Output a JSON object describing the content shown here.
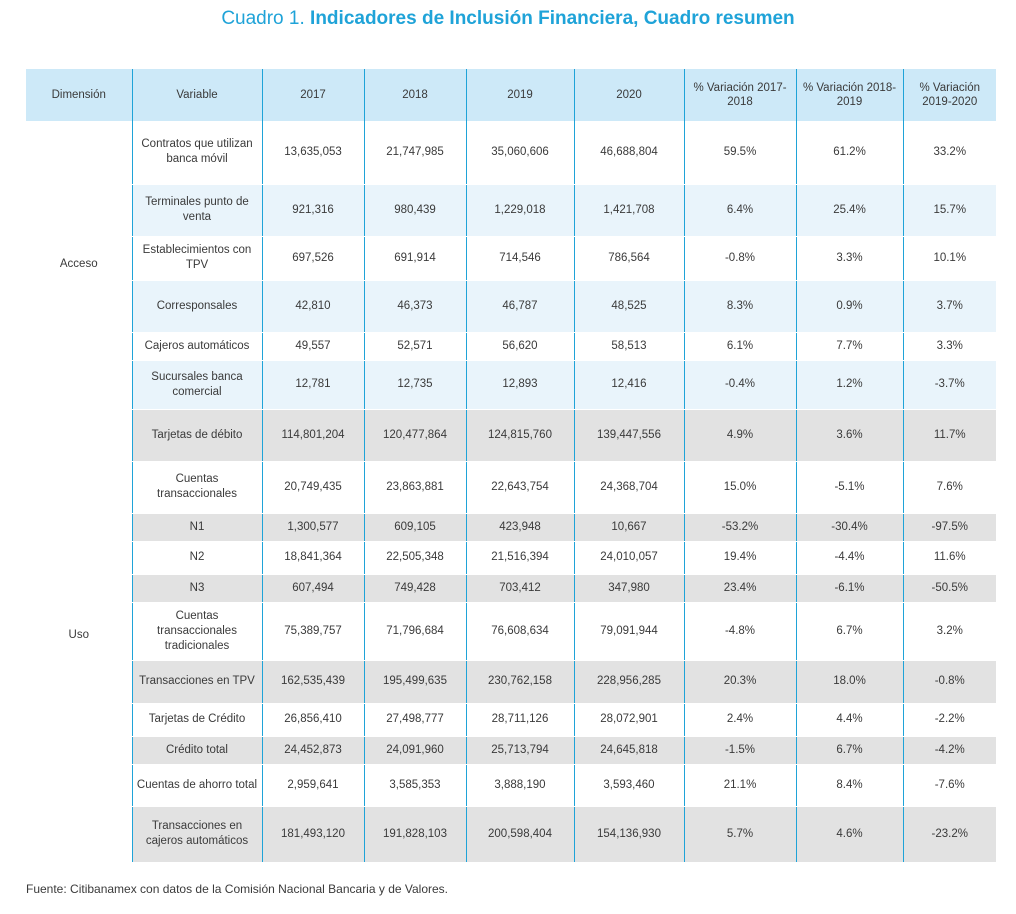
{
  "title": {
    "prefix": "Cuadro 1.",
    "main": "Indicadores de Inclusión Financiera, Cuadro resumen"
  },
  "columns": [
    "Dimensión",
    "Variable",
    "2017",
    "2018",
    "2019",
    "2020",
    "% Variación 2017-2018",
    "% Variación 2018-2019",
    "% Variación 2019-2020"
  ],
  "groups": [
    {
      "dimension": "Acceso",
      "rows": [
        {
          "variable": "Contratos que utilizan banca móvil",
          "v2017": "13,635,053",
          "v2018": "21,747,985",
          "v2019": "35,060,606",
          "v2020": "46,688,804",
          "p1": "59.5%",
          "p2": "61.2%",
          "p3": "33.2%"
        },
        {
          "variable": "Terminales punto de venta",
          "v2017": "921,316",
          "v2018": "980,439",
          "v2019": "1,229,018",
          "v2020": "1,421,708",
          "p1": "6.4%",
          "p2": "25.4%",
          "p3": "15.7%"
        },
        {
          "variable": "Establecimientos con TPV",
          "v2017": "697,526",
          "v2018": "691,914",
          "v2019": "714,546",
          "v2020": "786,564",
          "p1": "-0.8%",
          "p2": "3.3%",
          "p3": "10.1%"
        },
        {
          "variable": "Corresponsales",
          "v2017": "42,810",
          "v2018": "46,373",
          "v2019": "46,787",
          "v2020": "48,525",
          "p1": "8.3%",
          "p2": "0.9%",
          "p3": "3.7%"
        },
        {
          "variable": "Cajeros automáticos",
          "v2017": "49,557",
          "v2018": "52,571",
          "v2019": "56,620",
          "v2020": "58,513",
          "p1": "6.1%",
          "p2": "7.7%",
          "p3": "3.3%"
        },
        {
          "variable": "Sucursales banca comercial",
          "v2017": "12,781",
          "v2018": "12,735",
          "v2019": "12,893",
          "v2020": "12,416",
          "p1": "-0.4%",
          "p2": "1.2%",
          "p3": "-3.7%"
        }
      ]
    },
    {
      "dimension": "Uso",
      "rows": [
        {
          "variable": "Tarjetas de débito",
          "v2017": "114,801,204",
          "v2018": "120,477,864",
          "v2019": "124,815,760",
          "v2020": "139,447,556",
          "p1": "4.9%",
          "p2": "3.6%",
          "p3": "11.7%"
        },
        {
          "variable": "Cuentas transaccionales",
          "v2017": "20,749,435",
          "v2018": "23,863,881",
          "v2019": "22,643,754",
          "v2020": "24,368,704",
          "p1": "15.0%",
          "p2": "-5.1%",
          "p3": "7.6%"
        },
        {
          "variable": "N1",
          "v2017": "1,300,577",
          "v2018": "609,105",
          "v2019": "423,948",
          "v2020": "10,667",
          "p1": "-53.2%",
          "p2": "-30.4%",
          "p3": "-97.5%"
        },
        {
          "variable": "N2",
          "v2017": "18,841,364",
          "v2018": "22,505,348",
          "v2019": "21,516,394",
          "v2020": "24,010,057",
          "p1": "19.4%",
          "p2": "-4.4%",
          "p3": "11.6%"
        },
        {
          "variable": "N3",
          "v2017": "607,494",
          "v2018": "749,428",
          "v2019": "703,412",
          "v2020": "347,980",
          "p1": "23.4%",
          "p2": "-6.1%",
          "p3": "-50.5%"
        },
        {
          "variable": "Cuentas transaccionales tradicionales",
          "v2017": "75,389,757",
          "v2018": "71,796,684",
          "v2019": "76,608,634",
          "v2020": "79,091,944",
          "p1": "-4.8%",
          "p2": "6.7%",
          "p3": "3.2%"
        },
        {
          "variable": "Transacciones en TPV",
          "v2017": "162,535,439",
          "v2018": "195,499,635",
          "v2019": "230,762,158",
          "v2020": "228,956,285",
          "p1": "20.3%",
          "p2": "18.0%",
          "p3": "-0.8%"
        },
        {
          "variable": "Tarjetas de Crédito",
          "v2017": "26,856,410",
          "v2018": "27,498,777",
          "v2019": "28,711,126",
          "v2020": "28,072,901",
          "p1": "2.4%",
          "p2": "4.4%",
          "p3": "-2.2%"
        },
        {
          "variable": "Crédito total",
          "v2017": "24,452,873",
          "v2018": "24,091,960",
          "v2019": "25,713,794",
          "v2020": "24,645,818",
          "p1": "-1.5%",
          "p2": "6.7%",
          "p3": "-4.2%"
        },
        {
          "variable": "Cuentas de ahorro total",
          "v2017": "2,959,641",
          "v2018": "3,585,353",
          "v2019": "3,888,190",
          "v2020": "3,593,460",
          "p1": "21.1%",
          "p2": "8.4%",
          "p3": "-7.6%"
        },
        {
          "variable": "Transacciones en cajeros automáticos",
          "v2017": "181,493,120",
          "v2018": "191,828,103",
          "v2019": "200,598,404",
          "v2020": "154,136,930",
          "p1": "5.7%",
          "p2": "4.6%",
          "p3": "-23.2%"
        }
      ]
    }
  ],
  "footer": "Fuente: Citibanamex con datos de la Comisión Nacional Bancaria y de Valores.",
  "colors": {
    "accent": "#1fa3d8",
    "header_bg": "#cde9f8",
    "acceso_stripe": "#e9f4fb",
    "uso_stripe": "#e2e2e2"
  }
}
